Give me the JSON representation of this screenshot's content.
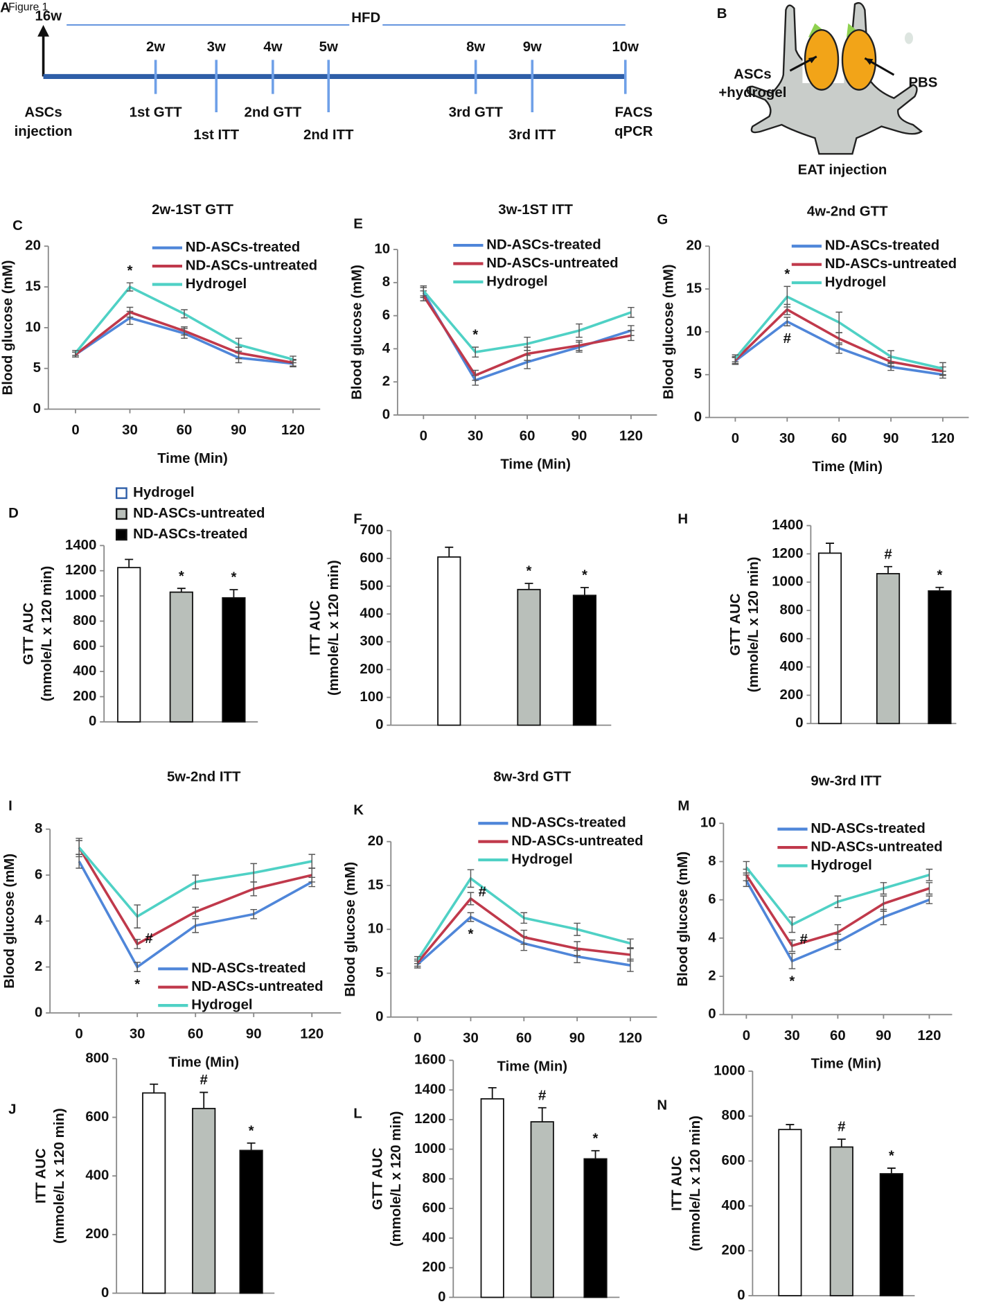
{
  "figure": {
    "label": "Figure 1"
  },
  "timeline": {
    "panel": "A",
    "start": "16w",
    "diet": "HFD",
    "start_label": [
      "ASCs",
      "injection"
    ],
    "events": [
      {
        "week": "2w",
        "label": [
          "1st GTT"
        ]
      },
      {
        "week": "3w",
        "label": [
          "1st ITT"
        ]
      },
      {
        "week": "4w",
        "label": [
          "2nd GTT"
        ]
      },
      {
        "week": "5w",
        "label": [
          "2nd ITT"
        ]
      },
      {
        "week": "8w",
        "label": [
          "3rd GTT"
        ]
      },
      {
        "week": "9w",
        "label": [
          "3rd ITT"
        ]
      },
      {
        "week": "10w",
        "label": [
          "FACS",
          "qPCR"
        ]
      }
    ]
  },
  "diagram": {
    "panel": "B",
    "left_label": [
      "ASCs",
      "+hydrogel"
    ],
    "right_label": "PBS",
    "caption": "EAT injection"
  },
  "chart_data": [
    {
      "type": "line",
      "panel": "C",
      "title": "2w-1ST GTT",
      "x_label": "Time (Min)",
      "y_label": "Blood glucose (mM)",
      "x": [
        0,
        30,
        60,
        90,
        120
      ],
      "xlim": [
        -15,
        135
      ],
      "xticks": [
        0,
        30,
        60,
        90,
        120
      ],
      "ylim": [
        0,
        20
      ],
      "yticks": [
        0,
        5,
        10,
        15,
        20
      ],
      "series": [
        {
          "name": "ND-ASCs-treated",
          "color": "#4f86d9",
          "values": [
            6.7,
            11.2,
            9.3,
            6.3,
            5.6
          ],
          "errors": [
            0.3,
            0.8,
            0.6,
            0.6,
            0.4
          ]
        },
        {
          "name": "ND-ASCs-untreated",
          "color": "#c0394b",
          "values": [
            6.7,
            11.9,
            9.6,
            6.9,
            5.7
          ],
          "errors": [
            0.3,
            0.6,
            0.5,
            0.7,
            0.4
          ]
        },
        {
          "name": "Hydrogel",
          "color": "#4fd1c5",
          "values": [
            6.9,
            15,
            11.7,
            7.9,
            6.1
          ],
          "errors": [
            0.3,
            0.5,
            0.5,
            0.8,
            0.4
          ]
        }
      ],
      "annotations": [
        {
          "x": 30,
          "text": "*",
          "position": "above"
        }
      ]
    },
    {
      "type": "line",
      "panel": "E",
      "title": "3w-1ST ITT",
      "x_label": "Time (Min)",
      "y_label": "Blood glucose (mM)",
      "x": [
        0,
        30,
        60,
        90,
        120
      ],
      "xlim": [
        -15,
        135
      ],
      "xticks": [
        0,
        30,
        60,
        90,
        120
      ],
      "ylim": [
        0,
        10
      ],
      "yticks": [
        0,
        2,
        4,
        6,
        8,
        10
      ],
      "series": [
        {
          "name": "ND-ASCs-treated",
          "color": "#4f86d9",
          "values": [
            7.4,
            2.1,
            3.2,
            4.1,
            5.1
          ],
          "errors": [
            0.3,
            0.3,
            0.4,
            0.3,
            0.3
          ]
        },
        {
          "name": "ND-ASCs-untreated",
          "color": "#c0394b",
          "values": [
            7.2,
            2.4,
            3.7,
            4.2,
            4.8
          ],
          "errors": [
            0.3,
            0.3,
            0.4,
            0.3,
            0.3
          ]
        },
        {
          "name": "Hydrogel",
          "color": "#4fd1c5",
          "values": [
            7.5,
            3.8,
            4.3,
            5.1,
            6.2
          ],
          "errors": [
            0.3,
            0.3,
            0.4,
            0.4,
            0.3
          ]
        }
      ],
      "annotations": [
        {
          "x": 30,
          "text": "*",
          "position": "above"
        }
      ]
    },
    {
      "type": "line",
      "panel": "G",
      "title": "4w-2nd GTT",
      "x_label": "Time (Min)",
      "y_label": "Blood glucose (mM)",
      "x": [
        0,
        30,
        60,
        90,
        120
      ],
      "xlim": [
        -15,
        135
      ],
      "xticks": [
        0,
        30,
        60,
        90,
        120
      ],
      "ylim": [
        0,
        20
      ],
      "yticks": [
        0,
        5,
        10,
        15,
        20
      ],
      "series": [
        {
          "name": "ND-ASCs-treated",
          "color": "#4f86d9",
          "values": [
            6.6,
            11.2,
            8.1,
            5.9,
            5
          ],
          "errors": [
            0.4,
            0.5,
            0.6,
            0.4,
            0.4
          ]
        },
        {
          "name": "ND-ASCs-untreated",
          "color": "#c0394b",
          "values": [
            6.7,
            12.6,
            9.2,
            6.5,
            5.4
          ],
          "errors": [
            0.4,
            0.6,
            0.7,
            0.5,
            0.5
          ]
        },
        {
          "name": "Hydrogel",
          "color": "#4fd1c5",
          "values": [
            6.9,
            14.1,
            11.1,
            7.1,
            5.7
          ],
          "errors": [
            0.4,
            1.2,
            1.2,
            0.7,
            0.7
          ]
        }
      ],
      "annotations": [
        {
          "x": 30,
          "text": "*",
          "position": "above"
        },
        {
          "x": 30,
          "text": "#",
          "position": "below"
        }
      ]
    },
    {
      "type": "bar",
      "panel": "D",
      "y_label": [
        "GTT AUC",
        "(mmole/L x 120 min)"
      ],
      "categories": [
        "Hydrogel",
        "ND-ASCs-untreated",
        "ND-ASCs-treated"
      ],
      "colors": [
        "#ffffff",
        "#b9bfba",
        "#000000"
      ],
      "values": [
        1225,
        1030,
        985
      ],
      "errors": [
        65,
        30,
        65
      ],
      "ylim": [
        0,
        1400
      ],
      "yticks": [
        0,
        200,
        400,
        600,
        800,
        1000,
        1200,
        1400
      ],
      "annotations": [
        {
          "index": 1,
          "text": "*"
        },
        {
          "index": 2,
          "text": "*"
        }
      ]
    },
    {
      "type": "bar",
      "panel": "F",
      "y_label": [
        "ITT AUC",
        "(mmole/L x 120 min)"
      ],
      "colors": [
        "#ffffff",
        "#b9bfba",
        "#000000"
      ],
      "values": [
        605,
        488,
        467
      ],
      "errors": [
        35,
        22,
        28
      ],
      "ylim": [
        0,
        700
      ],
      "yticks": [
        0,
        100,
        200,
        300,
        400,
        500,
        600,
        700
      ],
      "annotations": [
        {
          "index": 1,
          "text": "*"
        },
        {
          "index": 2,
          "text": "*"
        }
      ]
    },
    {
      "type": "bar",
      "panel": "H",
      "y_label": [
        "GTT AUC",
        "(mmole/L x 120 min)"
      ],
      "colors": [
        "#ffffff",
        "#b9bfba",
        "#000000"
      ],
      "values": [
        1205,
        1060,
        938
      ],
      "errors": [
        70,
        50,
        25
      ],
      "ylim": [
        0,
        1400
      ],
      "yticks": [
        0,
        200,
        400,
        600,
        800,
        1000,
        1200,
        1400
      ],
      "annotations": [
        {
          "index": 1,
          "text": "#"
        },
        {
          "index": 2,
          "text": "*"
        }
      ]
    },
    {
      "type": "line",
      "panel": "I",
      "title": "5w-2nd ITT",
      "x_label": "Time (Min)",
      "y_label": "Blood glucose (mM)",
      "x": [
        0,
        30,
        60,
        90,
        120
      ],
      "xlim": [
        -15,
        135
      ],
      "xticks": [
        0,
        30,
        60,
        90,
        120
      ],
      "ylim": [
        0,
        8
      ],
      "yticks": [
        0,
        2,
        4,
        6,
        8
      ],
      "series": [
        {
          "name": "ND-ASCs-treated",
          "color": "#4f86d9",
          "values": [
            6.6,
            2,
            3.8,
            4.3,
            5.7
          ],
          "errors": [
            0.3,
            0.2,
            0.3,
            0.2,
            0.2
          ]
        },
        {
          "name": "ND-ASCs-untreated",
          "color": "#c0394b",
          "values": [
            7.2,
            3,
            4.4,
            5.4,
            6
          ],
          "errors": [
            0.3,
            0.2,
            0.2,
            0.3,
            0.3
          ]
        },
        {
          "name": "Hydrogel",
          "color": "#4fd1c5",
          "values": [
            7.2,
            4.2,
            5.7,
            6.1,
            6.6
          ],
          "errors": [
            0.4,
            0.5,
            0.3,
            0.4,
            0.3
          ]
        }
      ],
      "annotations": [
        {
          "x": 30,
          "text": "#",
          "position": "right"
        },
        {
          "x": 30,
          "text": "*",
          "position": "below"
        }
      ]
    },
    {
      "type": "line",
      "panel": "K",
      "title": "8w-3rd GTT",
      "x_label": "Time (Min)",
      "y_label": "Blood glucose (mM)",
      "x": [
        0,
        30,
        60,
        90,
        120
      ],
      "xlim": [
        -15,
        135
      ],
      "xticks": [
        0,
        30,
        60,
        90,
        120
      ],
      "ylim": [
        0,
        20
      ],
      "yticks": [
        0,
        5,
        10,
        15,
        20
      ],
      "series": [
        {
          "name": "ND-ASCs-treated",
          "color": "#4f86d9",
          "values": [
            6,
            11.4,
            8.4,
            6.9,
            5.9
          ],
          "errors": [
            0.4,
            0.5,
            0.8,
            0.7,
            0.7
          ]
        },
        {
          "name": "ND-ASCs-untreated",
          "color": "#c0394b",
          "values": [
            6.2,
            13.5,
            9.1,
            7.8,
            7.1
          ],
          "errors": [
            0.4,
            0.7,
            0.8,
            0.8,
            0.7
          ]
        },
        {
          "name": "Hydrogel",
          "color": "#4fd1c5",
          "values": [
            6.5,
            15.8,
            11.3,
            10,
            8.4
          ],
          "errors": [
            0.4,
            1,
            0.6,
            0.7,
            0.5
          ]
        }
      ],
      "annotations": [
        {
          "x": 30,
          "text": "#",
          "position": "right"
        },
        {
          "x": 30,
          "text": "*",
          "position": "below"
        }
      ]
    },
    {
      "type": "line",
      "panel": "M",
      "title": "9w-3rd ITT",
      "x_label": "Time (Min)",
      "y_label": "Blood glucose (mM)",
      "x": [
        0,
        30,
        60,
        90,
        120
      ],
      "xlim": [
        -15,
        135
      ],
      "xticks": [
        0,
        30,
        60,
        90,
        120
      ],
      "ylim": [
        0,
        10
      ],
      "yticks": [
        0,
        2,
        4,
        6,
        8,
        10
      ],
      "series": [
        {
          "name": "ND-ASCs-treated",
          "color": "#4f86d9",
          "values": [
            7,
            2.8,
            3.8,
            5.1,
            6
          ],
          "errors": [
            0.3,
            0.4,
            0.4,
            0.4,
            0.2
          ]
        },
        {
          "name": "ND-ASCs-untreated",
          "color": "#c0394b",
          "values": [
            7.3,
            3.6,
            4.3,
            5.8,
            6.6
          ],
          "errors": [
            0.3,
            0.3,
            0.4,
            0.4,
            0.3
          ]
        },
        {
          "name": "Hydrogel",
          "color": "#4fd1c5",
          "values": [
            7.7,
            4.7,
            5.9,
            6.6,
            7.3
          ],
          "errors": [
            0.3,
            0.4,
            0.3,
            0.3,
            0.3
          ]
        }
      ],
      "annotations": [
        {
          "x": 30,
          "text": "#",
          "position": "right"
        },
        {
          "x": 30,
          "text": "*",
          "position": "below"
        }
      ]
    },
    {
      "type": "bar",
      "panel": "J",
      "y_label": [
        "ITT AUC",
        "(mmole/L x 120 min)"
      ],
      "colors": [
        "#ffffff",
        "#b9bfba",
        "#000000"
      ],
      "values": [
        683,
        630,
        487
      ],
      "errors": [
        30,
        55,
        25
      ],
      "ylim": [
        0,
        800
      ],
      "yticks": [
        0,
        200,
        400,
        600,
        800
      ],
      "annotations": [
        {
          "index": 1,
          "text": "#"
        },
        {
          "index": 2,
          "text": "*"
        }
      ]
    },
    {
      "type": "bar",
      "panel": "L",
      "y_label": [
        "GTT AUC",
        "(mmole/L x 120 min)"
      ],
      "colors": [
        "#ffffff",
        "#b9bfba",
        "#000000"
      ],
      "values": [
        1340,
        1185,
        935
      ],
      "errors": [
        75,
        95,
        55
      ],
      "ylim": [
        0,
        1600
      ],
      "yticks": [
        0,
        200,
        400,
        600,
        800,
        1000,
        1200,
        1400,
        1600
      ],
      "annotations": [
        {
          "index": 1,
          "text": "#"
        },
        {
          "index": 2,
          "text": "*"
        }
      ]
    },
    {
      "type": "bar",
      "panel": "N",
      "y_label": [
        "ITT AUC",
        "(mmole/L x 120 min)"
      ],
      "colors": [
        "#ffffff",
        "#b9bfba",
        "#000000"
      ],
      "values": [
        740,
        662,
        543
      ],
      "errors": [
        22,
        35,
        25
      ],
      "ylim": [
        0,
        1000
      ],
      "yticks": [
        0,
        200,
        400,
        600,
        800,
        1000
      ],
      "annotations": [
        {
          "index": 1,
          "text": "#"
        },
        {
          "index": 2,
          "text": "*"
        }
      ]
    }
  ]
}
